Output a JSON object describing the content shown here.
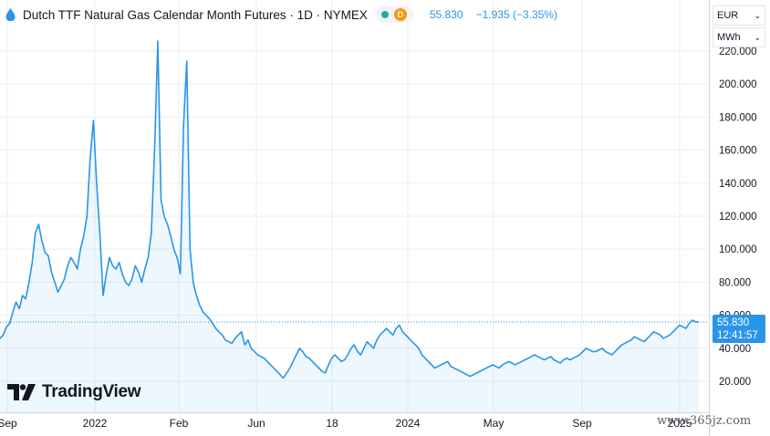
{
  "header": {
    "title": "Dutch TTF Natural Gas Calendar Month Futures · 1D · NYMEX",
    "status_letter": "D",
    "price": "55.830",
    "change": "−1.935 (−3.35%)"
  },
  "selectors": {
    "currency": "EUR",
    "unit": "MWh"
  },
  "price_label": {
    "value": "55.830",
    "time": "12:41:57"
  },
  "logo_text": "TradingView",
  "watermark": "www.365jz.com",
  "colors": {
    "line": "#2a95e8",
    "status_dot": "#22ab94",
    "status_d": "#ff9800"
  },
  "chart_data": {
    "type": "area",
    "title": "Dutch TTF Natural Gas Calendar Month Futures · 1D · NYMEX",
    "xlabel": "",
    "ylabel": "",
    "ylim": [
      10,
      228
    ],
    "y_ticks": [
      "20.000",
      "40.000",
      "60.000",
      "80.000",
      "100.000",
      "120.000",
      "140.000",
      "160.000",
      "180.000",
      "200.000",
      "220.000"
    ],
    "x_ticks": [
      "Sep",
      "2022",
      "Feb",
      "Jun",
      "18",
      "2024",
      "May",
      "Sep",
      "2025"
    ],
    "grid": true,
    "last_value": 55.83,
    "series": [
      {
        "values": [
          46,
          48,
          53,
          55,
          62,
          68,
          64,
          72,
          70,
          80,
          92,
          110,
          115,
          105,
          98,
          96,
          86,
          80,
          74,
          78,
          82,
          90,
          95,
          92,
          88,
          100,
          108,
          120,
          155,
          178,
          140,
          110,
          72,
          85,
          95,
          90,
          88,
          92,
          85,
          80,
          78,
          82,
          90,
          86,
          80,
          88,
          95,
          110,
          160,
          226,
          130,
          120,
          115,
          108,
          100,
          95,
          85,
          175,
          214,
          100,
          80,
          72,
          66,
          62,
          60,
          58,
          55,
          52,
          50,
          48,
          45,
          44,
          43,
          46,
          48,
          50,
          42,
          45,
          40,
          38,
          36,
          35,
          34,
          32,
          30,
          28,
          26,
          24,
          22,
          25,
          28,
          32,
          36,
          40,
          38,
          35,
          34,
          32,
          30,
          28,
          26,
          25,
          30,
          34,
          36,
          34,
          32,
          33,
          36,
          40,
          42,
          38,
          36,
          40,
          44,
          42,
          40,
          45,
          48,
          50,
          52,
          50,
          48,
          52,
          54,
          50,
          48,
          46,
          44,
          42,
          40,
          36,
          34,
          32,
          30,
          28,
          29,
          30,
          31,
          32,
          29,
          28,
          27,
          26,
          25,
          24,
          23,
          24,
          25,
          26,
          27,
          28,
          29,
          30,
          29,
          28,
          30,
          31,
          32,
          31,
          30,
          31,
          32,
          33,
          34,
          35,
          36,
          35,
          34,
          33,
          34,
          35,
          33,
          32,
          31,
          33,
          34,
          33,
          34,
          35,
          36,
          38,
          40,
          39,
          38,
          38,
          39,
          40,
          38,
          37,
          36,
          38,
          40,
          42,
          43,
          44,
          45,
          47,
          46,
          45,
          44,
          46,
          48,
          50,
          49,
          48,
          46,
          47,
          48,
          50,
          52,
          54,
          53,
          52,
          55,
          57,
          56,
          55.83
        ]
      }
    ]
  }
}
